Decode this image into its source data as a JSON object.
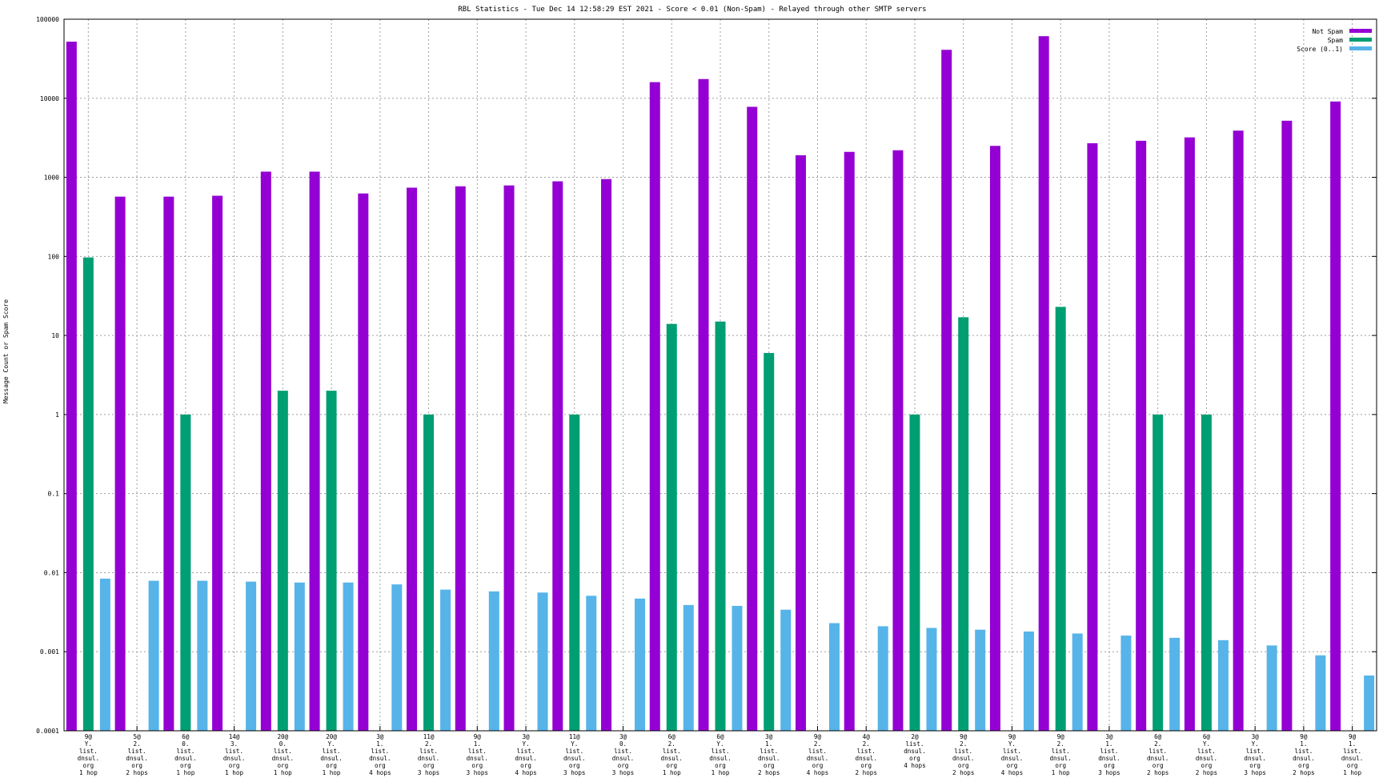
{
  "chart_data": {
    "type": "bar",
    "title": "RBL Statistics - Tue Dec 14 12:58:29 EST 2021 - Score < 0.01 (Non-Spam) - Relayed through other SMTP servers",
    "xlabel": "",
    "ylabel": "Message Count or Spam Score",
    "y_scale": "log",
    "ylim": [
      0.0001,
      100000
    ],
    "y_ticks": [
      "100000",
      "10000",
      "1000",
      "100",
      "10",
      "1",
      "0.1",
      "0.01",
      "0.001",
      "0.0001"
    ],
    "grid": true,
    "legend_position": "top-right",
    "categories": [
      [
        "9@",
        "Y.",
        "list.",
        "dnsul.",
        "org",
        "1 hop"
      ],
      [
        "5@",
        "2.",
        "list.",
        "dnsul.",
        "org",
        "2 hops"
      ],
      [
        "6@",
        "0.",
        "list.",
        "dnsul.",
        "org",
        "1 hop"
      ],
      [
        "14@",
        "3.",
        "list.",
        "dnsul.",
        "org",
        "1 hop"
      ],
      [
        "20@",
        "0.",
        "list.",
        "dnsul.",
        "org",
        "1 hop"
      ],
      [
        "20@",
        "Y.",
        "list.",
        "dnsul.",
        "org",
        "1 hop"
      ],
      [
        "3@",
        "1.",
        "list.",
        "dnsul.",
        "org",
        "4 hops"
      ],
      [
        "11@",
        "2.",
        "list.",
        "dnsul.",
        "org",
        "3 hops"
      ],
      [
        "9@",
        "1.",
        "list.",
        "dnsul.",
        "org",
        "3 hops"
      ],
      [
        "3@",
        "Y.",
        "list.",
        "dnsul.",
        "org",
        "4 hops"
      ],
      [
        "11@",
        "Y.",
        "list.",
        "dnsul.",
        "org",
        "3 hops"
      ],
      [
        "3@",
        "0.",
        "list.",
        "dnsul.",
        "org",
        "3 hops"
      ],
      [
        "6@",
        "2.",
        "list.",
        "dnsul.",
        "org",
        "1 hop"
      ],
      [
        "6@",
        "Y.",
        "list.",
        "dnsul.",
        "org",
        "1 hop"
      ],
      [
        "3@",
        "1.",
        "list.",
        "dnsul.",
        "org",
        "2 hops"
      ],
      [
        "9@",
        "2.",
        "list.",
        "dnsul.",
        "org",
        "4 hops"
      ],
      [
        "4@",
        "2.",
        "list.",
        "dnsul.",
        "org",
        "2 hops"
      ],
      [
        "2@",
        "list.",
        "dnsul.",
        "org",
        "4 hops"
      ],
      [
        "9@",
        "2.",
        "list.",
        "dnsul.",
        "org",
        "2 hops"
      ],
      [
        "9@",
        "Y.",
        "list.",
        "dnsul.",
        "org",
        "4 hops"
      ],
      [
        "9@",
        "2.",
        "list.",
        "dnsul.",
        "org",
        "1 hop"
      ],
      [
        "3@",
        "1.",
        "list.",
        "dnsul.",
        "org",
        "3 hops"
      ],
      [
        "6@",
        "2.",
        "list.",
        "dnsul.",
        "org",
        "2 hops"
      ],
      [
        "6@",
        "Y.",
        "list.",
        "dnsul.",
        "org",
        "2 hops"
      ],
      [
        "3@",
        "Y.",
        "list.",
        "dnsul.",
        "org",
        "3 hops"
      ],
      [
        "9@",
        "1.",
        "list.",
        "dnsul.",
        "org",
        "2 hops"
      ],
      [
        "9@",
        "1.",
        "list.",
        "dnsul.",
        "org",
        "1 hop"
      ]
    ],
    "series": [
      {
        "name": "Not Spam",
        "color": "#9400d3",
        "values": [
          52000,
          570,
          570,
          585,
          1180,
          1180,
          625,
          740,
          770,
          790,
          890,
          950,
          16000,
          17500,
          7800,
          1900,
          2100,
          2200,
          41000,
          2500,
          61000,
          2700,
          2900,
          3200,
          3900,
          5200,
          9100
        ]
      },
      {
        "name": "Spam",
        "color": "#009e73",
        "values": [
          97,
          null,
          1,
          null,
          2,
          2,
          null,
          1,
          null,
          null,
          1,
          null,
          14,
          15,
          6,
          null,
          null,
          1,
          17,
          null,
          23,
          null,
          1,
          1,
          null,
          null,
          null
        ]
      },
      {
        "name": "Score (0..1)",
        "color": "#56b4e9",
        "values": [
          0.0084,
          0.0079,
          0.0079,
          0.0077,
          0.0075,
          0.0075,
          0.0071,
          0.0061,
          0.0058,
          0.0056,
          0.0051,
          0.0047,
          0.0039,
          0.0038,
          0.0034,
          0.0023,
          0.0021,
          0.002,
          0.0019,
          0.0018,
          0.0017,
          0.0016,
          0.0015,
          0.0014,
          0.0012,
          0.0009,
          0.0005
        ]
      }
    ]
  }
}
